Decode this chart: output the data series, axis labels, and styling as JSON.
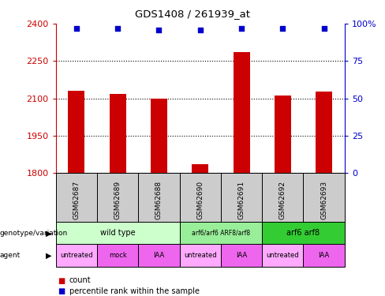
{
  "title": "GDS1408 / 261939_at",
  "samples": [
    "GSM62687",
    "GSM62689",
    "GSM62688",
    "GSM62690",
    "GSM62691",
    "GSM62692",
    "GSM62693"
  ],
  "counts": [
    2130,
    2118,
    2100,
    1835,
    2285,
    2112,
    2127
  ],
  "percentile_ranks": [
    97,
    97,
    96,
    96,
    97,
    97,
    97
  ],
  "ylim_left": [
    1800,
    2400
  ],
  "ylim_right": [
    0,
    100
  ],
  "yticks_left": [
    1800,
    1950,
    2100,
    2250,
    2400
  ],
  "yticks_right": [
    0,
    25,
    50,
    75,
    100
  ],
  "genotype_groups": [
    {
      "label": "wild type",
      "start": 0,
      "end": 3,
      "color": "#ccffcc"
    },
    {
      "label": "arf6/arf6 ARF8/arf8",
      "start": 3,
      "end": 5,
      "color": "#99ee99"
    },
    {
      "label": "arf6 arf8",
      "start": 5,
      "end": 7,
      "color": "#33cc33"
    }
  ],
  "agent_groups": [
    {
      "label": "untreated",
      "start": 0,
      "end": 1,
      "color": "#ffaaff"
    },
    {
      "label": "mock",
      "start": 1,
      "end": 2,
      "color": "#ee66ee"
    },
    {
      "label": "IAA",
      "start": 2,
      "end": 3,
      "color": "#ee66ee"
    },
    {
      "label": "untreated",
      "start": 3,
      "end": 4,
      "color": "#ffaaff"
    },
    {
      "label": "IAA",
      "start": 4,
      "end": 5,
      "color": "#ee66ee"
    },
    {
      "label": "untreated",
      "start": 5,
      "end": 6,
      "color": "#ffaaff"
    },
    {
      "label": "IAA",
      "start": 6,
      "end": 7,
      "color": "#ee66ee"
    }
  ],
  "bar_color": "#cc0000",
  "dot_color": "#0000cc",
  "left_axis_color": "#cc0000",
  "right_axis_color": "#0000cc",
  "sample_box_color": "#cccccc",
  "bar_width": 0.4
}
